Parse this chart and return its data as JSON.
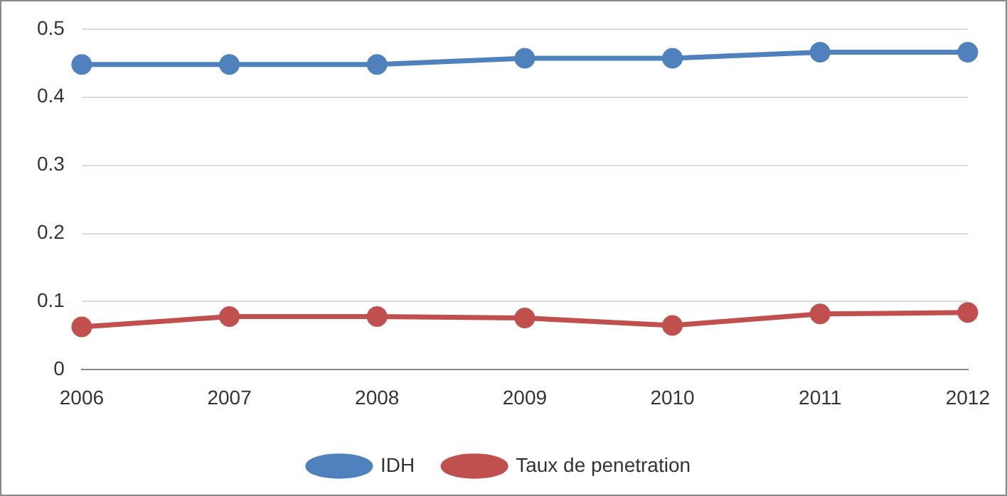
{
  "chart_data": {
    "type": "line",
    "categories": [
      "2006",
      "2007",
      "2008",
      "2009",
      "2010",
      "2011",
      "2012"
    ],
    "series": [
      {
        "name": "IDH",
        "color": "#4f81bd",
        "values": [
          0.448,
          0.448,
          0.448,
          0.457,
          0.457,
          0.466,
          0.466
        ]
      },
      {
        "name": "Taux de penetration",
        "color": "#c0504d",
        "values": [
          0.063,
          0.078,
          0.078,
          0.076,
          0.065,
          0.082,
          0.084
        ]
      }
    ],
    "ylim": [
      0,
      0.5
    ],
    "yticks": [
      0,
      0.1,
      0.2,
      0.3,
      0.4,
      0.5
    ],
    "grid": "y",
    "legend": "bottom",
    "marker": "circle"
  }
}
